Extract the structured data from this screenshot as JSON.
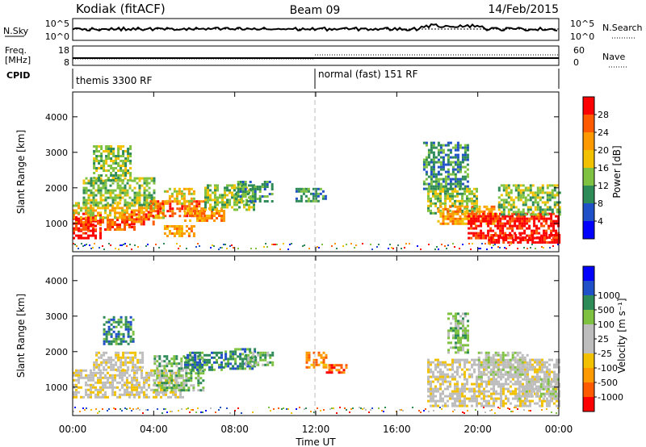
{
  "header": {
    "station": "Kodiak (fitACF)",
    "beam": "Beam 09",
    "date": "14/Feb/2015"
  },
  "sky_panel": {
    "left_label": "N.Sky",
    "right_label": "N.Search",
    "left_ticks": [
      "10^5",
      "10^0"
    ],
    "right_ticks": [
      "10^5",
      "10^0"
    ]
  },
  "freq_panel": {
    "left_label_1": "Freq.",
    "left_label_2": "[MHz]",
    "right_label": "Nave",
    "left_ticks": [
      "18",
      "8"
    ],
    "right_ticks": [
      "60",
      "0"
    ]
  },
  "cpid": {
    "label": "CPID",
    "modes": [
      {
        "name": "themis 3300 RF",
        "start_hour": 0
      },
      {
        "name": "normal (fast) 151 RF",
        "start_hour": 12
      }
    ]
  },
  "time_axis": {
    "label": "Time UT",
    "ticks": [
      "00:00",
      "04:00",
      "08:00",
      "12:00",
      "16:00",
      "20:00",
      "00:00"
    ]
  },
  "colors": {
    "power_scale": [
      "#0000ff",
      "#2050c8",
      "#2e8b57",
      "#7fc241",
      "#f2c200",
      "#ff9900",
      "#ff5a00",
      "#ff0000"
    ],
    "velocity_scale": [
      "#ff0000",
      "#ff5a00",
      "#ff9900",
      "#f2c200",
      "#bdbdbd",
      "#bdbdbd",
      "#7fc241",
      "#2e8b57",
      "#2050c8",
      "#0000ff"
    ]
  },
  "chart_data": [
    {
      "type": "heatmap",
      "title": "Power",
      "ylabel": "Slant Range [km]",
      "xlabel": "",
      "xlim": [
        0,
        24
      ],
      "ylim": [
        200,
        4700
      ],
      "yticks": [
        1000,
        2000,
        3000,
        4000
      ],
      "colorbar_label": "Power [dB]",
      "colorbar_ticks": [
        "4",
        "8",
        "12",
        "16",
        "20",
        "24",
        "28"
      ],
      "regions": [
        {
          "t0": 0.0,
          "t1": 1.4,
          "r0": 600,
          "r1": 1300,
          "level": 7
        },
        {
          "t0": 0.0,
          "t1": 3.0,
          "r0": 850,
          "r1": 1200,
          "level": 6
        },
        {
          "t0": 0.0,
          "t1": 4.5,
          "r0": 1150,
          "r1": 1600,
          "level": 4
        },
        {
          "t0": 0.5,
          "t1": 4.0,
          "r0": 1500,
          "r1": 2300,
          "level": 3
        },
        {
          "t0": 1.0,
          "t1": 2.8,
          "r0": 2200,
          "r1": 3200,
          "level": 3
        },
        {
          "t0": 2.5,
          "t1": 4.0,
          "r0": 1000,
          "r1": 1350,
          "level": 6
        },
        {
          "t0": 3.8,
          "t1": 6.5,
          "r0": 1200,
          "r1": 1650,
          "level": 6
        },
        {
          "t0": 4.5,
          "t1": 6.0,
          "r0": 1550,
          "r1": 2000,
          "level": 4
        },
        {
          "t0": 4.5,
          "t1": 6.0,
          "r0": 650,
          "r1": 950,
          "level": 5
        },
        {
          "t0": 5.5,
          "t1": 7.5,
          "r0": 1100,
          "r1": 1450,
          "level": 5
        },
        {
          "t0": 6.5,
          "t1": 9.0,
          "r0": 1400,
          "r1": 2100,
          "level": 3
        },
        {
          "t0": 8.0,
          "t1": 9.9,
          "r0": 1600,
          "r1": 2200,
          "level": 2
        },
        {
          "t0": 11.0,
          "t1": 12.5,
          "r0": 1600,
          "r1": 2000,
          "level": 2
        },
        {
          "t0": 17.3,
          "t1": 19.5,
          "r0": 2000,
          "r1": 3300,
          "level": 2
        },
        {
          "t0": 17.5,
          "t1": 20.0,
          "r0": 1300,
          "r1": 2000,
          "level": 3
        },
        {
          "t0": 18.0,
          "t1": 21.0,
          "r0": 1000,
          "r1": 1500,
          "level": 5
        },
        {
          "t0": 19.5,
          "t1": 24.0,
          "r0": 600,
          "r1": 1300,
          "level": 7
        },
        {
          "t0": 21.0,
          "t1": 24.0,
          "r0": 1250,
          "r1": 2100,
          "level": 3
        },
        {
          "t0": 20.5,
          "t1": 24.0,
          "r0": 450,
          "r1": 700,
          "level": 7
        }
      ]
    },
    {
      "type": "heatmap",
      "title": "Velocity",
      "ylabel": "Slant Range [km]",
      "xlabel": "Time UT",
      "xlim": [
        0,
        24
      ],
      "ylim": [
        200,
        4700
      ],
      "yticks": [
        1000,
        2000,
        3000,
        4000
      ],
      "colorbar_label": "Velocity [m s⁻¹]",
      "colorbar_ticks": [
        "-1000",
        "-500",
        "-100",
        "-25",
        "25",
        "100",
        "500",
        "1000"
      ],
      "regions": [
        {
          "t0": 0.0,
          "t1": 5.5,
          "r0": 700,
          "r1": 1500,
          "level": 4
        },
        {
          "t0": 1.0,
          "t1": 3.5,
          "r0": 1500,
          "r1": 2000,
          "level": 4
        },
        {
          "t0": 1.5,
          "t1": 3.0,
          "r0": 2200,
          "r1": 3000,
          "level": 7
        },
        {
          "t0": 4.0,
          "t1": 6.5,
          "r0": 900,
          "r1": 1900,
          "level": 6
        },
        {
          "t0": 5.5,
          "t1": 7.5,
          "r0": 1500,
          "r1": 2000,
          "level": 7
        },
        {
          "t0": 7.5,
          "t1": 9.0,
          "r0": 1500,
          "r1": 2100,
          "level": 7
        },
        {
          "t0": 8.5,
          "t1": 9.9,
          "r0": 1650,
          "r1": 2000,
          "level": 6
        },
        {
          "t0": 11.5,
          "t1": 12.5,
          "r0": 1550,
          "r1": 2000,
          "level": 2
        },
        {
          "t0": 12.5,
          "t1": 13.5,
          "r0": 1400,
          "r1": 1650,
          "level": 1
        },
        {
          "t0": 17.5,
          "t1": 24.0,
          "r0": 500,
          "r1": 1800,
          "level": 4
        },
        {
          "t0": 18.5,
          "t1": 19.5,
          "r0": 2000,
          "r1": 3100,
          "level": 6
        },
        {
          "t0": 20.0,
          "t1": 22.5,
          "r0": 1300,
          "r1": 2000,
          "level": 5
        },
        {
          "t0": 22.0,
          "t1": 24.0,
          "r0": 650,
          "r1": 1250,
          "level": 5
        }
      ]
    }
  ]
}
